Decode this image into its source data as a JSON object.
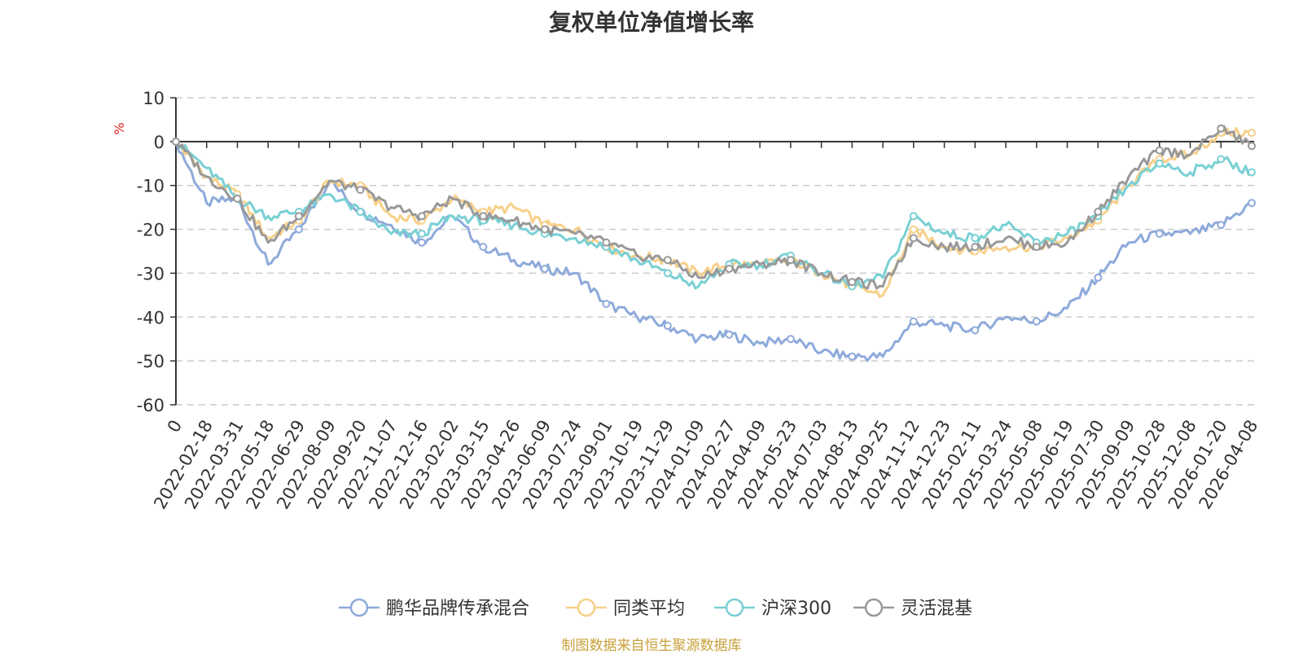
{
  "chart_data": {
    "type": "line",
    "title": "复权单位净值增长率",
    "ylabel": "%",
    "xlabel": "",
    "ylim": [
      -60,
      10
    ],
    "yticks": [
      10,
      0,
      -10,
      -20,
      -30,
      -40,
      -50,
      -60
    ],
    "grid": true,
    "legend_position": "bottom",
    "categories": [
      "0",
      "2022-02-18",
      "2022-03-31",
      "2022-05-18",
      "2022-06-29",
      "2022-08-09",
      "2022-09-20",
      "2022-11-07",
      "2022-12-16",
      "2023-02-02",
      "2023-03-15",
      "2023-04-26",
      "2023-06-09",
      "2023-07-24",
      "2023-09-01",
      "2023-10-19",
      "2023-11-29",
      "2024-01-09",
      "2024-02-27",
      "2024-04-09",
      "2024-05-23",
      "2024-07-03",
      "2024-08-13",
      "2024-09-25",
      "2024-11-12",
      "2024-12-23",
      "2025-02-11",
      "2025-03-24",
      "2025-05-08",
      "2025-06-19",
      "2025-07-30",
      "2025-09-09",
      "2025-10-28",
      "2025-12-08",
      "2026-01-20",
      "2026-04-08"
    ],
    "series": [
      {
        "name": "鹏华品牌传承混合",
        "color": "#8eaadb",
        "values": [
          0,
          -14,
          -13,
          -28,
          -20,
          -9,
          -16,
          -19,
          -23,
          -17,
          -24,
          -27,
          -29,
          -30,
          -37,
          -40,
          -42,
          -45,
          -44,
          -46,
          -45,
          -48,
          -49,
          -49,
          -41,
          -42,
          -43,
          -40,
          -41,
          -38,
          -31,
          -23,
          -21,
          -21,
          -19,
          -14
        ]
      },
      {
        "name": "同类平均",
        "color": "#f7d08a",
        "values": [
          0,
          -8,
          -12,
          -22,
          -18,
          -9,
          -10,
          -17,
          -18,
          -13,
          -16,
          -15,
          -19,
          -20,
          -24,
          -26,
          -27,
          -30,
          -28,
          -28,
          -27,
          -30,
          -33,
          -35,
          -20,
          -24,
          -25,
          -24,
          -24,
          -22,
          -18,
          -10,
          -4,
          -3,
          2,
          2
        ]
      },
      {
        "name": "沪深300",
        "color": "#79d0d4",
        "values": [
          0,
          -6,
          -13,
          -17,
          -16,
          -12,
          -16,
          -21,
          -21,
          -17,
          -18,
          -19,
          -21,
          -22,
          -24,
          -27,
          -30,
          -33,
          -28,
          -28,
          -26,
          -30,
          -33,
          -31,
          -17,
          -21,
          -22,
          -19,
          -23,
          -21,
          -17,
          -10,
          -5,
          -7,
          -4,
          -7
        ]
      },
      {
        "name": "灵活混基",
        "color": "#999999",
        "values": [
          0,
          -8,
          -13,
          -23,
          -17,
          -9,
          -11,
          -15,
          -17,
          -13,
          -17,
          -18,
          -20,
          -21,
          -23,
          -26,
          -27,
          -31,
          -29,
          -28,
          -27,
          -30,
          -32,
          -33,
          -22,
          -24,
          -24,
          -22,
          -24,
          -23,
          -16,
          -8,
          -2,
          -3,
          3,
          -1
        ]
      }
    ]
  },
  "source_note": "制图数据来自恒生聚源数据库"
}
